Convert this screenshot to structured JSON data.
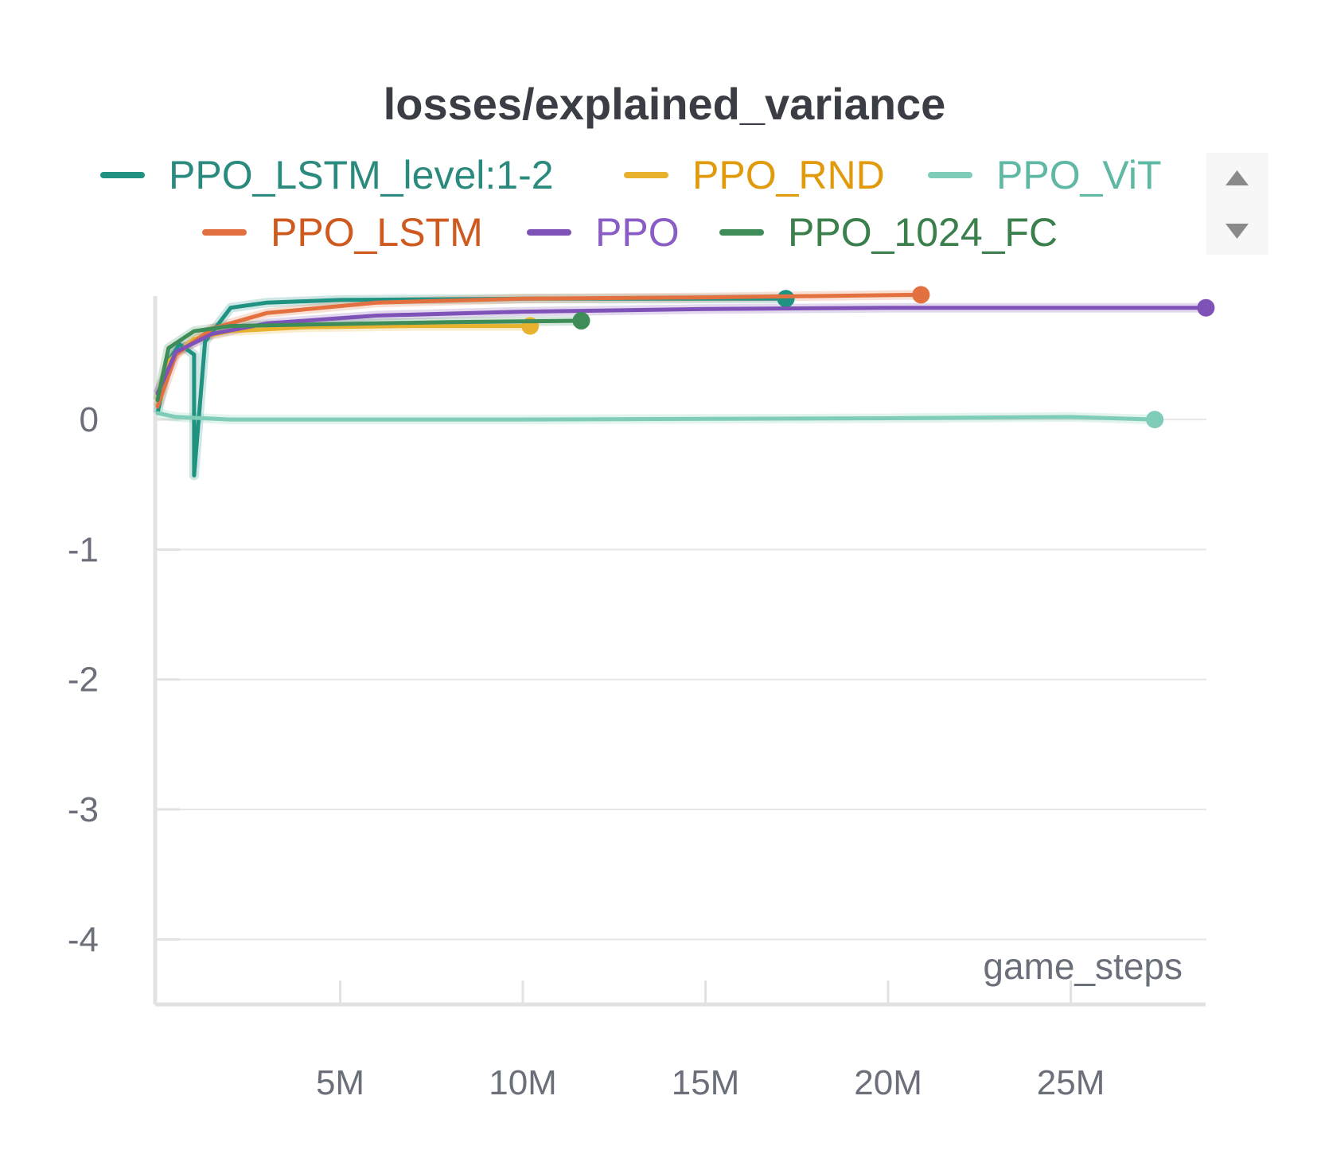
{
  "chart_data": {
    "type": "line",
    "title": "losses/explained_variance",
    "xlabel": "game_steps",
    "ylabel": "",
    "xlim": [
      0,
      28800000
    ],
    "ylim": [
      -4.5,
      0.95
    ],
    "x_ticks": [
      {
        "value": 5000000,
        "label": "5M"
      },
      {
        "value": 10000000,
        "label": "10M"
      },
      {
        "value": 15000000,
        "label": "15M"
      },
      {
        "value": 20000000,
        "label": "20M"
      },
      {
        "value": 25000000,
        "label": "25M"
      }
    ],
    "y_ticks": [
      {
        "value": 0,
        "label": "0"
      },
      {
        "value": -1,
        "label": "-1"
      },
      {
        "value": -2,
        "label": "-2"
      },
      {
        "value": -3,
        "label": "-3"
      },
      {
        "value": -4,
        "label": "-4"
      }
    ],
    "grid": true,
    "legend_position": "top",
    "series": [
      {
        "name": "PPO_LSTM_level:1-2",
        "color": "#1f9282",
        "label_color": "#2a8a7d",
        "points": [
          [
            0,
            0.05
          ],
          [
            300000,
            0.45
          ],
          [
            600000,
            0.58
          ],
          [
            1000000,
            0.5
          ],
          [
            1000000,
            -0.43
          ],
          [
            1300000,
            0.6
          ],
          [
            2000000,
            0.86
          ],
          [
            3000000,
            0.9
          ],
          [
            5000000,
            0.92
          ],
          [
            10000000,
            0.93
          ],
          [
            15000000,
            0.93
          ],
          [
            17200000,
            0.93
          ]
        ]
      },
      {
        "name": "PPO_RND",
        "color": "#e8b12e",
        "label_color": "#e09a0c",
        "points": [
          [
            0,
            0.15
          ],
          [
            300000,
            0.45
          ],
          [
            1000000,
            0.62
          ],
          [
            2000000,
            0.68
          ],
          [
            4000000,
            0.71
          ],
          [
            7000000,
            0.72
          ],
          [
            10200000,
            0.72
          ]
        ]
      },
      {
        "name": "PPO_ViT",
        "color": "#7fcdb8",
        "label_color": "#5fb8a3",
        "points": [
          [
            0,
            0.05
          ],
          [
            500000,
            0.02
          ],
          [
            2000000,
            0.0
          ],
          [
            10000000,
            0.0
          ],
          [
            20000000,
            0.01
          ],
          [
            25000000,
            0.02
          ],
          [
            27300000,
            0.0
          ]
        ]
      },
      {
        "name": "PPO_LSTM",
        "color": "#e3713f",
        "label_color": "#cf5a20",
        "points": [
          [
            0,
            0.1
          ],
          [
            500000,
            0.5
          ],
          [
            1500000,
            0.7
          ],
          [
            3000000,
            0.82
          ],
          [
            6000000,
            0.9
          ],
          [
            10000000,
            0.93
          ],
          [
            15000000,
            0.94
          ],
          [
            20900000,
            0.96
          ]
        ]
      },
      {
        "name": "PPO",
        "color": "#7f52b8",
        "label_color": "#8a5cc6",
        "points": [
          [
            0,
            0.2
          ],
          [
            500000,
            0.52
          ],
          [
            1500000,
            0.66
          ],
          [
            3000000,
            0.74
          ],
          [
            6000000,
            0.8
          ],
          [
            10000000,
            0.83
          ],
          [
            15000000,
            0.85
          ],
          [
            20000000,
            0.86
          ],
          [
            25000000,
            0.86
          ],
          [
            28700000,
            0.86
          ]
        ]
      },
      {
        "name": "PPO_1024_FC",
        "color": "#3e8d58",
        "label_color": "#3a7f4c",
        "points": [
          [
            0,
            0.15
          ],
          [
            300000,
            0.55
          ],
          [
            1000000,
            0.68
          ],
          [
            2000000,
            0.72
          ],
          [
            4000000,
            0.73
          ],
          [
            8000000,
            0.75
          ],
          [
            11600000,
            0.76
          ]
        ]
      }
    ]
  }
}
